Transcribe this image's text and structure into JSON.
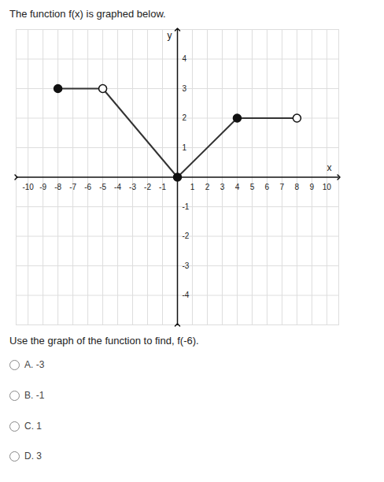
{
  "chart_data": {
    "type": "line",
    "x": [
      -8,
      -5,
      0,
      4,
      8
    ],
    "values": [
      3,
      3,
      0,
      2,
      2
    ],
    "marker": [
      "filled",
      "open",
      "filled",
      "filled",
      "open"
    ],
    "color": "#333333",
    "xlim": [
      -10.8,
      10.8
    ],
    "ylim": [
      -5,
      5
    ],
    "xticks": [
      -10,
      -9,
      -8,
      -7,
      -6,
      -5,
      -4,
      -3,
      -2,
      -1,
      1,
      2,
      3,
      4,
      5,
      6,
      7,
      8,
      9,
      10
    ],
    "yticks": [
      -4,
      -3,
      -2,
      -1,
      1,
      2,
      3,
      4
    ],
    "xlabel": "x",
    "ylabel": "y",
    "grid": true
  },
  "intro": "The function f(x) is graphed below.",
  "question": "Use the graph of the function to find, f(-6).",
  "options": [
    "A. -3",
    "B. -1",
    "C. 1",
    "D. 3"
  ]
}
